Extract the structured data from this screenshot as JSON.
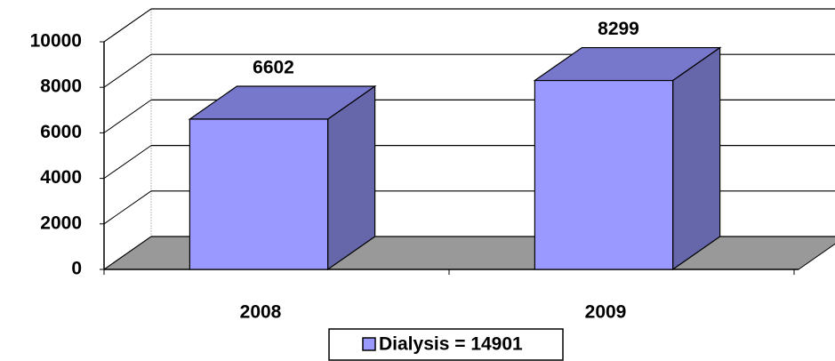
{
  "chart_data": {
    "type": "bar3d",
    "categories": [
      "2008",
      "2009"
    ],
    "series": [
      {
        "name": "Dialysis = 14901",
        "color": "#9999ff",
        "values": [
          6602,
          8299
        ]
      }
    ],
    "ylim": [
      0,
      10000
    ],
    "yticks": [
      0,
      2000,
      4000,
      6000,
      8000,
      10000
    ],
    "grid": true,
    "legend": "bottom"
  }
}
